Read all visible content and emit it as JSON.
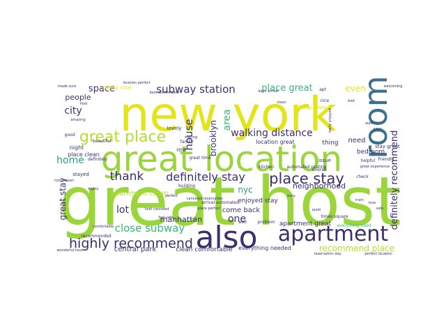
{
  "palette": {
    "lime": "#9ad63b",
    "yellow": "#e3e419",
    "teal": "#3a6f8e",
    "green": "#35b779",
    "aqua": "#2a9b8a",
    "purple": "#3b2f6e",
    "violet": "#482878",
    "light": "#b5de2b"
  },
  "words": [
    {
      "text": "great host",
      "color": "#9ad63b"
    },
    {
      "text": "new york",
      "color": "#e3e419"
    },
    {
      "text": "great location",
      "color": "#9ad63b"
    },
    {
      "text": "room",
      "color": "#3a6f8e"
    },
    {
      "text": "also",
      "color": "#3b2f6e"
    },
    {
      "text": "apartment",
      "color": "#3b2f6e"
    },
    {
      "text": "great place",
      "color": "#b5de2b"
    },
    {
      "text": "highly recommend",
      "color": "#3b2f6e"
    },
    {
      "text": "place stay",
      "color": "#3b2f6e"
    },
    {
      "text": "definitely stay",
      "color": "#3b2f6e"
    },
    {
      "text": "subway station",
      "color": "#3b2f6e"
    },
    {
      "text": "walking distance",
      "color": "#3b2f6e"
    },
    {
      "text": "close subway",
      "color": "#35b779"
    },
    {
      "text": "recommend place",
      "color": "#b5de2b"
    },
    {
      "text": "definitely recommend",
      "color": "#3b2f6e"
    },
    {
      "text": "place great",
      "color": "#35b779"
    },
    {
      "text": "house",
      "color": "#3b2f6e"
    },
    {
      "text": "brooklyn",
      "color": "#3b2f6e"
    },
    {
      "text": "area",
      "color": "#35b779"
    },
    {
      "text": "thank",
      "color": "#3b2f6e"
    },
    {
      "text": "space",
      "color": "#3b2f6e"
    },
    {
      "text": "city",
      "color": "#3b2f6e"
    },
    {
      "text": "home",
      "color": "#2a9b8a"
    },
    {
      "text": "great stay",
      "color": "#3b2f6e"
    },
    {
      "text": "lot",
      "color": "#3b2f6e"
    },
    {
      "text": "manhattan",
      "color": "#3b2f6e"
    },
    {
      "text": "central park",
      "color": "#3b2f6e"
    },
    {
      "text": "one",
      "color": "#3b2f6e"
    },
    {
      "text": "nyc",
      "color": "#2a9b8a"
    },
    {
      "text": "even",
      "color": "#e3e419"
    },
    {
      "text": "people",
      "color": "#3b2f6e"
    },
    {
      "text": "come back",
      "color": "#3b2f6e"
    },
    {
      "text": "neighborhood",
      "color": "#3b2f6e"
    },
    {
      "text": "apartment great",
      "color": "#3b2f6e"
    },
    {
      "text": "clean comfortable",
      "color": "#3b2f6e"
    },
    {
      "text": "need",
      "color": "#3b2f6e"
    },
    {
      "text": "thing",
      "color": "#3b2f6e"
    },
    {
      "text": "bedroom",
      "color": "#3b2f6e"
    },
    {
      "text": "enjoyed stay",
      "color": "#3b2f6e"
    },
    {
      "text": "apartment clean",
      "color": "#b5de2b"
    },
    {
      "text": "location great",
      "color": "#3b2f6e"
    },
    {
      "text": "night",
      "color": "#3b2f6e"
    },
    {
      "text": "stay great",
      "color": "#3b2f6e"
    },
    {
      "text": "everything needed",
      "color": "#3b2f6e"
    },
    {
      "text": "place clean",
      "color": "#3b2f6e"
    },
    {
      "text": "really nice",
      "color": "#e3e419"
    },
    {
      "text": "living room",
      "color": "#e3e419"
    },
    {
      "text": "stayed",
      "color": "#3b2f6e"
    },
    {
      "text": "issue",
      "color": "#3b2f6e"
    },
    {
      "text": "lovely",
      "color": "#3b2f6e"
    },
    {
      "text": "automated posting",
      "color": "#3b2f6e"
    },
    {
      "text": "kitchen",
      "color": "#3b2f6e"
    },
    {
      "text": "problem",
      "color": "#3b2f6e"
    },
    {
      "text": "great time",
      "color": "#3b2f6e"
    },
    {
      "text": "little",
      "color": "#3b2f6e"
    },
    {
      "text": "everything need",
      "color": "#35b779"
    },
    {
      "text": "times square",
      "color": "#3b2f6e"
    },
    {
      "text": "arrival automated",
      "color": "#3b2f6e"
    },
    {
      "text": "definitely",
      "color": "#3b2f6e"
    },
    {
      "text": "recommended",
      "color": "#3b2f6e"
    },
    {
      "text": "staying",
      "color": "#3b2f6e"
    },
    {
      "text": "well",
      "color": "#3b2f6e"
    },
    {
      "text": "host canceled",
      "color": "#3b2f6e"
    },
    {
      "text": "place perfect",
      "color": "#3b2f6e"
    },
    {
      "text": "best comfortable",
      "color": "#3b2f6e"
    },
    {
      "text": "days arrival",
      "color": "#3b2f6e"
    },
    {
      "text": "reservation day",
      "color": "#3b2f6e"
    },
    {
      "text": "perfect location",
      "color": "#3b2f6e"
    },
    {
      "text": "welcoming",
      "color": "#3b2f6e"
    },
    {
      "text": "beautiful",
      "color": "#3b2f6e"
    },
    {
      "text": "family",
      "color": "#3b2f6e"
    },
    {
      "text": "amazing",
      "color": "#3b2f6e"
    },
    {
      "text": "location perfect",
      "color": "#3b2f6e"
    },
    {
      "text": "made sure",
      "color": "#3b2f6e"
    },
    {
      "text": "good",
      "color": "#3b2f6e"
    },
    {
      "text": "nice",
      "color": "#3b2f6e"
    },
    {
      "text": "friendly",
      "color": "#3b2f6e"
    },
    {
      "text": "helpful",
      "color": "#3b2f6e"
    },
    {
      "text": "great experience",
      "color": "#3b2f6e"
    },
    {
      "text": "overall",
      "color": "#3b2f6e"
    },
    {
      "text": "check",
      "color": "#3b2f6e"
    },
    {
      "text": "canceled reservation",
      "color": "#3b2f6e"
    },
    {
      "text": "really enjoyed",
      "color": "#3b2f6e"
    },
    {
      "text": "room clean",
      "color": "#3b2f6e"
    },
    {
      "text": "host",
      "color": "#3b2f6e"
    },
    {
      "text": "wonderful host",
      "color": "#3b2f6e"
    },
    {
      "text": "feel safe",
      "color": "#3b2f6e"
    },
    {
      "text": "highly",
      "color": "#3b2f6e"
    },
    {
      "text": "building",
      "color": "#3b2f6e"
    },
    {
      "text": "perfect",
      "color": "#3b2f6e"
    },
    {
      "text": "easy",
      "color": "#3b2f6e"
    },
    {
      "text": "apt",
      "color": "#3b2f6e"
    },
    {
      "text": "comfortable",
      "color": "#3b2f6e"
    },
    {
      "text": "quiet",
      "color": "#3b2f6e"
    },
    {
      "text": "clean",
      "color": "#3b2f6e"
    },
    {
      "text": "bed",
      "color": "#3b2f6e"
    },
    {
      "text": "safe",
      "color": "#3b2f6e"
    },
    {
      "text": "love",
      "color": "#3b2f6e"
    },
    {
      "text": "away",
      "color": "#3b2f6e"
    },
    {
      "text": "walk",
      "color": "#3b2f6e"
    },
    {
      "text": "train",
      "color": "#3b2f6e"
    }
  ]
}
